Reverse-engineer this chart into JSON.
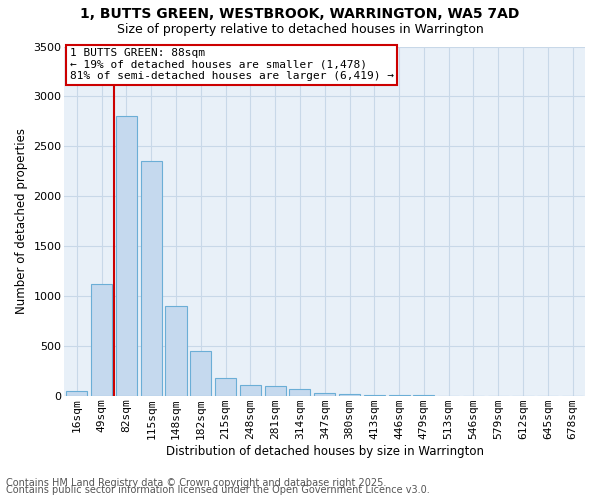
{
  "title": "1, BUTTS GREEN, WESTBROOK, WARRINGTON, WA5 7AD",
  "subtitle": "Size of property relative to detached houses in Warrington",
  "xlabel": "Distribution of detached houses by size in Warrington",
  "ylabel": "Number of detached properties",
  "categories": [
    "16sqm",
    "49sqm",
    "82sqm",
    "115sqm",
    "148sqm",
    "182sqm",
    "215sqm",
    "248sqm",
    "281sqm",
    "314sqm",
    "347sqm",
    "380sqm",
    "413sqm",
    "446sqm",
    "479sqm",
    "513sqm",
    "546sqm",
    "579sqm",
    "612sqm",
    "645sqm",
    "678sqm"
  ],
  "values": [
    50,
    1120,
    2800,
    2350,
    900,
    450,
    180,
    110,
    100,
    70,
    30,
    20,
    10,
    5,
    2,
    1,
    0,
    0,
    0,
    0,
    0
  ],
  "bar_color": "#c5d9ee",
  "bar_edge_color": "#6baed6",
  "annotation_title": "1 BUTTS GREEN: 88sqm",
  "annotation_line1": "← 19% of detached houses are smaller (1,478)",
  "annotation_line2": "81% of semi-detached houses are larger (6,419) →",
  "annotation_box_color": "#ffffff",
  "annotation_box_edge_color": "#cc0000",
  "vline_color": "#cc0000",
  "footnote1": "Contains HM Land Registry data © Crown copyright and database right 2025.",
  "footnote2": "Contains public sector information licensed under the Open Government Licence v3.0.",
  "background_color": "#ffffff",
  "plot_bg_color": "#e8f0f8",
  "grid_color": "#c8d8e8",
  "ylim": [
    0,
    3500
  ],
  "yticks": [
    0,
    500,
    1000,
    1500,
    2000,
    2500,
    3000,
    3500
  ],
  "title_fontsize": 10,
  "subtitle_fontsize": 9,
  "xlabel_fontsize": 8.5,
  "ylabel_fontsize": 8.5,
  "tick_fontsize": 8,
  "annotation_fontsize": 8,
  "footnote_fontsize": 7
}
